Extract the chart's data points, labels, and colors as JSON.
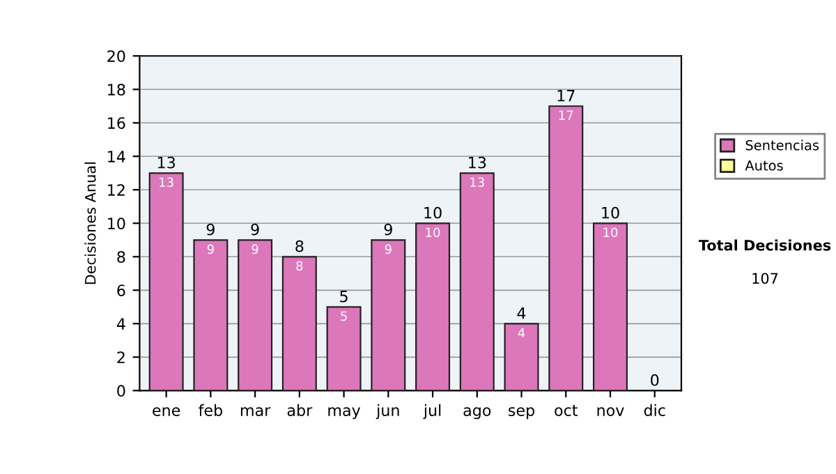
{
  "chart_data": {
    "type": "bar",
    "ylabel": "Decisiones Anual",
    "categories": [
      "ene",
      "feb",
      "mar",
      "abr",
      "may",
      "jun",
      "jul",
      "ago",
      "sep",
      "oct",
      "nov",
      "dic"
    ],
    "stacked": true,
    "series": [
      {
        "name": "Sentencias",
        "color": "#dd77bb",
        "values": [
          13,
          9,
          9,
          8,
          5,
          9,
          10,
          13,
          4,
          17,
          10,
          0
        ],
        "value_labels": [
          "13",
          "9",
          "9",
          "8",
          "5",
          "9",
          "10",
          "13",
          "4",
          "17",
          "10",
          null
        ]
      },
      {
        "name": "Autos",
        "color": "#ffff99",
        "values": [
          0,
          0,
          0,
          0,
          0,
          0,
          0,
          0,
          0,
          0,
          0,
          0
        ]
      }
    ],
    "totals": [
      "13",
      "9",
      "9",
      "8",
      "5",
      "9",
      "10",
      "13",
      "4",
      "17",
      "10",
      "0"
    ],
    "ylim": [
      0,
      20
    ],
    "yticks": [
      0,
      2,
      4,
      6,
      8,
      10,
      12,
      14,
      16,
      18,
      20
    ],
    "grid": "y",
    "legend": "right",
    "annotations": [
      "Total Decisiones",
      "107"
    ]
  }
}
